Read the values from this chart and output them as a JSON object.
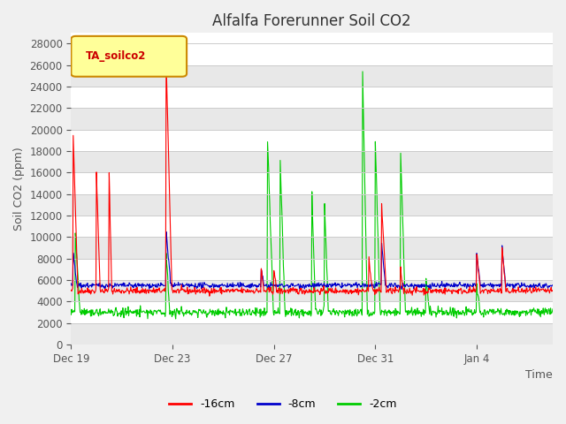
{
  "title": "Alfalfa Forerunner Soil CO2",
  "ylabel": "Soil CO2 (ppm)",
  "xlabel": "Time",
  "legend_label": "TA_soilco2",
  "series_labels": [
    "-16cm",
    "-8cm",
    "-2cm"
  ],
  "series_colors": [
    "#ff0000",
    "#0000cc",
    "#00cc00"
  ],
  "ylim": [
    0,
    29000
  ],
  "yticks": [
    0,
    2000,
    4000,
    6000,
    8000,
    10000,
    12000,
    14000,
    16000,
    18000,
    20000,
    22000,
    24000,
    26000,
    28000
  ],
  "xtick_labels": [
    "Dec 19",
    "Dec 23",
    "Dec 27",
    "Dec 31",
    "Jan 4"
  ],
  "bg_color": "#f0f0f0",
  "plot_bg": "#ffffff",
  "grid_color": "#cccccc",
  "legend_box_color": "#ffff99",
  "legend_box_edge": "#cc8800"
}
